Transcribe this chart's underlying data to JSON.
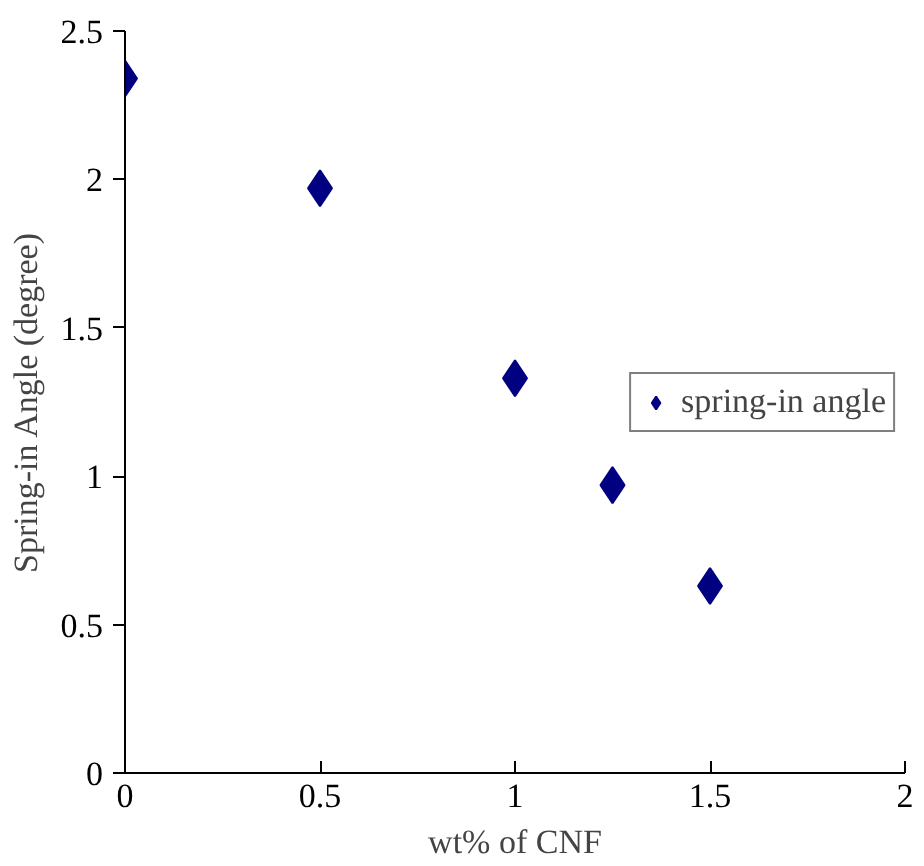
{
  "chart_data": {
    "type": "scatter",
    "xlabel": "wt% of CNF",
    "ylabel": "Spring-in Angle (degree)",
    "x": [
      0,
      0.5,
      1,
      1.25,
      1.5
    ],
    "series": [
      {
        "name": "spring-in angle",
        "color": "#000080",
        "values": [
          2.34,
          1.97,
          1.33,
          0.97,
          0.63
        ]
      }
    ],
    "xlim": [
      0,
      2
    ],
    "xticks": [
      0,
      0.5,
      1,
      1.5,
      2
    ],
    "ylim": [
      0,
      2.5
    ],
    "yticks": [
      0,
      0.5,
      1,
      1.5,
      2,
      2.5
    ],
    "marker": "diamond",
    "legend": "right",
    "grid": false
  }
}
